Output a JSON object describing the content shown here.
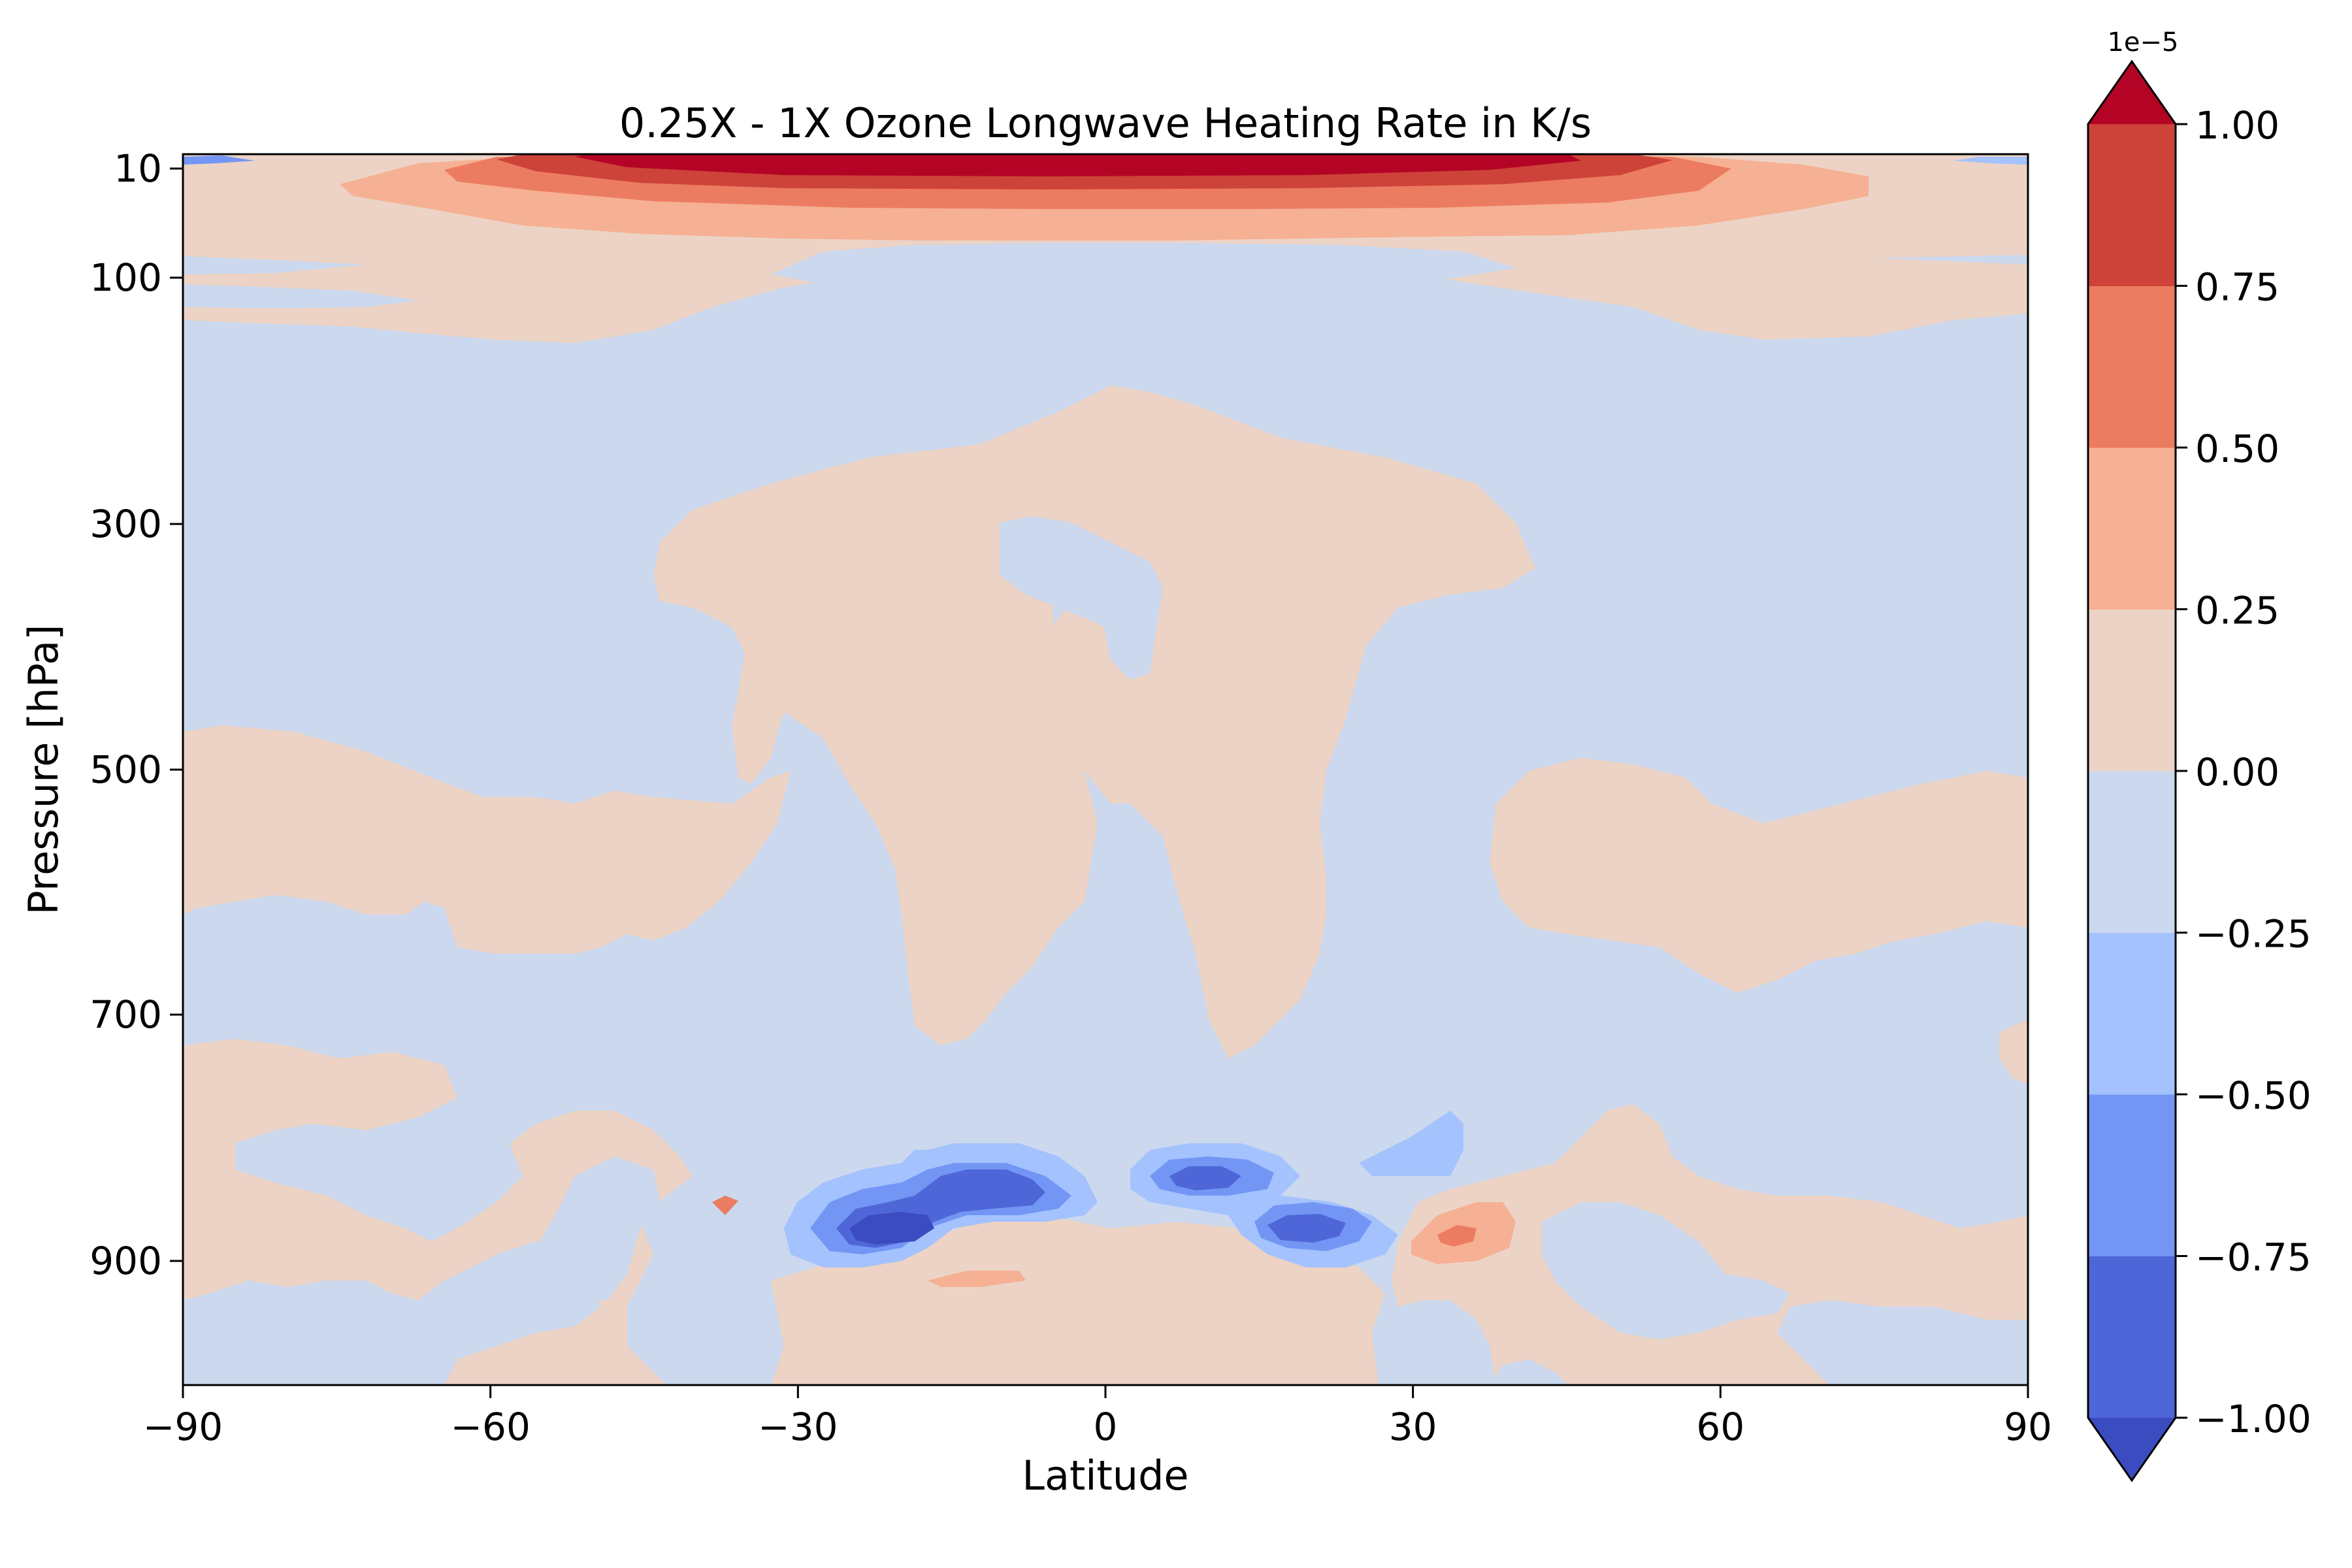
{
  "chart_data": {
    "type": "contourf",
    "title": "0.25X - 1X Ozone Longwave Heating Rate in K/s",
    "xlabel": "Latitude",
    "ylabel": "Pressure [hPa]",
    "xlim": [
      -90,
      90
    ],
    "ylim": [
      1000,
      5
    ],
    "x_ticks": [
      -90,
      -60,
      -30,
      0,
      30,
      60,
      90
    ],
    "x_tick_labels": [
      "−90",
      "−60",
      "−30",
      "0",
      "30",
      "60",
      "90"
    ],
    "y_ticks": [
      10,
      100,
      300,
      500,
      700,
      900
    ],
    "y_tick_labels": [
      "10",
      "100",
      "300",
      "500",
      "700",
      "900"
    ],
    "colorbar": {
      "levels": [
        -1.0,
        -0.75,
        -0.5,
        -0.25,
        0.0,
        0.25,
        0.5,
        0.75,
        1.0
      ],
      "tick_labels": [
        "−1.00",
        "−0.75",
        "−0.50",
        "−0.25",
        "0.00",
        "0.25",
        "0.50",
        "0.75",
        "1.00"
      ],
      "scale_label": "1e−5",
      "extend": "both",
      "colors": [
        "#3b4cc0",
        "#4f66d8",
        "#7396f5",
        "#a3c2fe",
        "#cbd8ee",
        "#ecd3c5",
        "#f6b093",
        "#ec7c61",
        "#cd4339",
        "#b40426"
      ]
    }
  }
}
